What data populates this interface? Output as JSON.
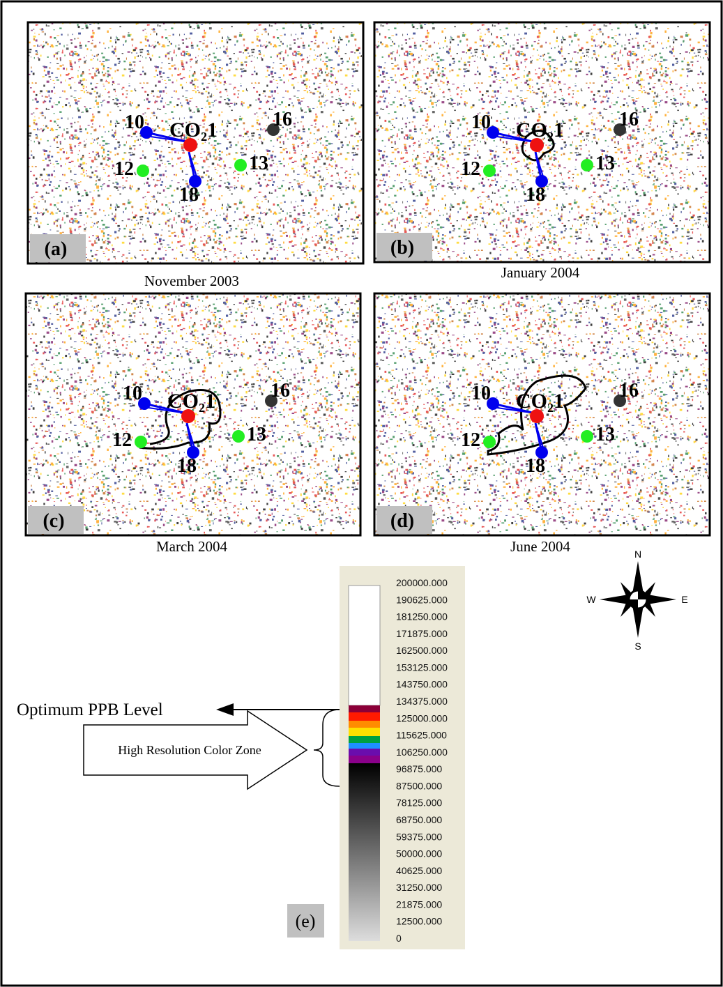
{
  "panels": [
    {
      "letter": "(a)",
      "date": "November 2003",
      "injector": {
        "text": "CO",
        "sub": "2",
        "num": "1"
      },
      "wells": [
        "10",
        "12",
        "13",
        "16",
        "18"
      ]
    },
    {
      "letter": "(b)",
      "date": "January 2004",
      "injector": {
        "text": "CO",
        "sub": "2",
        "num": "1"
      },
      "wells": [
        "10",
        "12",
        "13",
        "16",
        "18"
      ]
    },
    {
      "letter": "(c)",
      "date": "March 2004",
      "injector": {
        "text": "CO",
        "sub": "2",
        "num": "1"
      },
      "wells": [
        "10",
        "12",
        "13",
        "16",
        "18"
      ]
    },
    {
      "letter": "(d)",
      "date": "June 2004",
      "injector": {
        "text": "CO",
        "sub": "2",
        "num": "1"
      },
      "wells": [
        "10",
        "12",
        "13",
        "16",
        "18"
      ]
    }
  ],
  "legend": {
    "letter": "(e)",
    "optimum": "Optimum PPB Level",
    "zone": "High Resolution Color Zone",
    "scale_labels": [
      "200000.000",
      "190625.000",
      "181250.000",
      "171875.000",
      "162500.000",
      "153125.000",
      "143750.000",
      "134375.000",
      "125000.000",
      "115625.000",
      "106250.000",
      "96875.000",
      "87500.000",
      "78125.000",
      "68750.000",
      "59375.000",
      "50000.000",
      "40625.000",
      "31250.000",
      "21875.000",
      "12500.000",
      "0"
    ]
  },
  "compass": {
    "n": "N",
    "s": "S",
    "w": "W",
    "e": "E"
  }
}
